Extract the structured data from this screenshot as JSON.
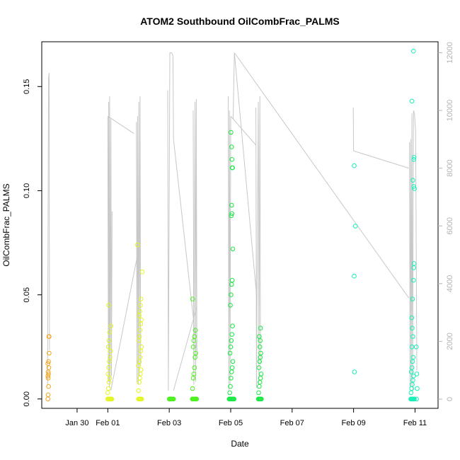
{
  "chart_data": {
    "type": "scatter",
    "title": "ATOM2 Southbound OilCombFrac_PALMS",
    "xlabel": "Date",
    "ylabel": "OilCombFrac_PALMS",
    "x_range_days": [
      -2.15,
      10.75
    ],
    "ylim": [
      -0.0045,
      0.1715
    ],
    "y2lim": [
      -320,
      12380
    ],
    "x_ticks": [
      {
        "label": "Jan 30",
        "day": -1
      },
      {
        "label": "Feb 01",
        "day": 0
      },
      {
        "label": "Feb 03",
        "day": 2
      },
      {
        "label": "Feb 05",
        "day": 4
      },
      {
        "label": "Feb 07",
        "day": 6
      },
      {
        "label": "Feb 09",
        "day": 8
      },
      {
        "label": "Feb 11",
        "day": 10
      }
    ],
    "y_ticks": [
      {
        "label": "0.00",
        "value": 0.0
      },
      {
        "label": "0.05",
        "value": 0.05
      },
      {
        "label": "0.10",
        "value": 0.1
      },
      {
        "label": "0.15",
        "value": 0.15
      }
    ],
    "y2_ticks": [
      {
        "label": "0",
        "value": 0
      },
      {
        "label": "2000",
        "value": 2000
      },
      {
        "label": "4000",
        "value": 4000
      },
      {
        "label": "6000",
        "value": 6000
      },
      {
        "label": "8000",
        "value": 8000
      },
      {
        "label": "10000",
        "value": 10000
      },
      {
        "label": "12000",
        "value": 12000
      }
    ],
    "colors": {
      "orange": "#f5a31a",
      "yellow": "#e3f522",
      "green": "#4cf01e",
      "brightgreen": "#19e843",
      "cyan": "#17f0b8",
      "grayline": "#c8c8c8"
    },
    "series": [
      {
        "color": "orange",
        "points": [
          [
            -1.95,
            0.0
          ],
          [
            -1.94,
            0.002
          ],
          [
            -1.93,
            0.006
          ],
          [
            -1.94,
            0.01
          ],
          [
            -1.95,
            0.011
          ],
          [
            -1.93,
            0.012
          ],
          [
            -1.94,
            0.013
          ],
          [
            -1.92,
            0.015
          ],
          [
            -1.95,
            0.017
          ],
          [
            -1.93,
            0.018
          ],
          [
            -1.91,
            0.022
          ],
          [
            -1.92,
            0.03
          ],
          [
            -1.91,
            0.03
          ]
        ]
      },
      {
        "color": "yellow",
        "points": [
          [
            0.0,
            0.0
          ],
          [
            0.01,
            0.0
          ],
          [
            0.02,
            0.0
          ],
          [
            0.03,
            0.0
          ],
          [
            0.05,
            0.0
          ],
          [
            0.07,
            0.0
          ],
          [
            0.09,
            0.0
          ],
          [
            0.11,
            0.0
          ],
          [
            0.13,
            0.0
          ],
          [
            0.0,
            0.003
          ],
          [
            0.02,
            0.005
          ],
          [
            0.04,
            0.008
          ],
          [
            0.06,
            0.01
          ],
          [
            0.01,
            0.012
          ],
          [
            0.03,
            0.015
          ],
          [
            0.05,
            0.018
          ],
          [
            0.07,
            0.02
          ],
          [
            0.09,
            0.023
          ],
          [
            0.02,
            0.025
          ],
          [
            0.04,
            0.028
          ],
          [
            0.06,
            0.032
          ],
          [
            0.1,
            0.035
          ],
          [
            0.03,
            0.045
          ],
          [
            0.08,
            0.0
          ],
          [
            1.0,
            0.0
          ],
          [
            1.02,
            0.0
          ],
          [
            1.04,
            0.0
          ],
          [
            1.06,
            0.0
          ],
          [
            1.08,
            0.0
          ],
          [
            1.1,
            0.0
          ],
          [
            1.0,
            0.004
          ],
          [
            1.02,
            0.008
          ],
          [
            1.04,
            0.01
          ],
          [
            1.06,
            0.012
          ],
          [
            1.08,
            0.014
          ],
          [
            1.0,
            0.016
          ],
          [
            1.03,
            0.018
          ],
          [
            1.05,
            0.02
          ],
          [
            1.07,
            0.023
          ],
          [
            1.09,
            0.025
          ],
          [
            1.01,
            0.028
          ],
          [
            1.03,
            0.03
          ],
          [
            1.05,
            0.033
          ],
          [
            1.07,
            0.036
          ],
          [
            1.09,
            0.038
          ],
          [
            1.02,
            0.04
          ],
          [
            1.04,
            0.042
          ],
          [
            1.06,
            0.045
          ],
          [
            1.08,
            0.048
          ],
          [
            1.12,
            0.061
          ],
          [
            0.97,
            0.074
          ]
        ]
      },
      {
        "color": "green",
        "points": [
          [
            2.0,
            0.0
          ],
          [
            2.02,
            0.0
          ],
          [
            2.04,
            0.0
          ],
          [
            2.06,
            0.0
          ],
          [
            2.08,
            0.0
          ],
          [
            2.1,
            0.0
          ],
          [
            2.12,
            0.0
          ],
          [
            2.14,
            0.0
          ],
          [
            2.75,
            0.0
          ],
          [
            2.77,
            0.0
          ],
          [
            2.79,
            0.0
          ],
          [
            2.81,
            0.0
          ],
          [
            2.83,
            0.0
          ],
          [
            2.85,
            0.0
          ],
          [
            2.87,
            0.0
          ],
          [
            2.89,
            0.0
          ],
          [
            2.76,
            0.005
          ],
          [
            2.78,
            0.01
          ],
          [
            2.8,
            0.012
          ],
          [
            2.82,
            0.015
          ],
          [
            2.84,
            0.02
          ],
          [
            2.86,
            0.022
          ],
          [
            2.78,
            0.025
          ],
          [
            2.8,
            0.028
          ],
          [
            2.82,
            0.03
          ],
          [
            2.85,
            0.033
          ],
          [
            2.76,
            0.048
          ]
        ]
      },
      {
        "color": "brightgreen",
        "points": [
          [
            3.95,
            0.0
          ],
          [
            3.97,
            0.0
          ],
          [
            3.99,
            0.0
          ],
          [
            4.01,
            0.0
          ],
          [
            4.03,
            0.0
          ],
          [
            4.05,
            0.0
          ],
          [
            4.07,
            0.0
          ],
          [
            4.09,
            0.0
          ],
          [
            4.11,
            0.0
          ],
          [
            3.97,
            0.003
          ],
          [
            3.99,
            0.006
          ],
          [
            4.01,
            0.01
          ],
          [
            4.03,
            0.013
          ],
          [
            4.05,
            0.015
          ],
          [
            4.07,
            0.018
          ],
          [
            3.98,
            0.022
          ],
          [
            4.0,
            0.025
          ],
          [
            4.02,
            0.028
          ],
          [
            4.04,
            0.031
          ],
          [
            4.06,
            0.035
          ],
          [
            3.99,
            0.045
          ],
          [
            4.01,
            0.05
          ],
          [
            4.03,
            0.055
          ],
          [
            4.05,
            0.057
          ],
          [
            4.07,
            0.072
          ],
          [
            4.02,
            0.088
          ],
          [
            4.04,
            0.089
          ],
          [
            4.03,
            0.093
          ],
          [
            4.05,
            0.111
          ],
          [
            4.06,
            0.111
          ],
          [
            4.04,
            0.115
          ],
          [
            4.03,
            0.121
          ],
          [
            4.01,
            0.128
          ],
          [
            4.9,
            0.0
          ],
          [
            4.92,
            0.0
          ],
          [
            4.94,
            0.0
          ],
          [
            4.96,
            0.0
          ],
          [
            4.98,
            0.0
          ],
          [
            5.0,
            0.0
          ],
          [
            4.91,
            0.003
          ],
          [
            4.93,
            0.006
          ],
          [
            4.95,
            0.008
          ],
          [
            4.97,
            0.01
          ],
          [
            4.99,
            0.012
          ],
          [
            4.92,
            0.015
          ],
          [
            4.94,
            0.018
          ],
          [
            4.96,
            0.02
          ],
          [
            4.98,
            0.022
          ],
          [
            4.95,
            0.025
          ],
          [
            4.93,
            0.03
          ],
          [
            4.97,
            0.034
          ],
          [
            4.96,
            0.028
          ]
        ]
      },
      {
        "color": "cyan",
        "points": [
          [
            8.03,
            0.013
          ],
          [
            8.02,
            0.059
          ],
          [
            8.06,
            0.083
          ],
          [
            8.02,
            0.112
          ],
          [
            9.86,
            0.0
          ],
          [
            9.88,
            0.0
          ],
          [
            9.9,
            0.0
          ],
          [
            9.92,
            0.0
          ],
          [
            9.94,
            0.0
          ],
          [
            9.96,
            0.0
          ],
          [
            9.98,
            0.0
          ],
          [
            9.87,
            0.003
          ],
          [
            9.89,
            0.005
          ],
          [
            9.91,
            0.007
          ],
          [
            9.93,
            0.009
          ],
          [
            9.95,
            0.011
          ],
          [
            9.88,
            0.013
          ],
          [
            9.9,
            0.015
          ],
          [
            9.92,
            0.018
          ],
          [
            9.94,
            0.02
          ],
          [
            9.9,
            0.025
          ],
          [
            9.93,
            0.03
          ],
          [
            9.91,
            0.034
          ],
          [
            9.89,
            0.039
          ],
          [
            9.92,
            0.048
          ],
          [
            9.95,
            0.057
          ],
          [
            9.96,
            0.063
          ],
          [
            9.97,
            0.065
          ],
          [
            9.98,
            0.101
          ],
          [
            9.96,
            0.102
          ],
          [
            9.93,
            0.105
          ],
          [
            9.96,
            0.115
          ],
          [
            9.97,
            0.116
          ],
          [
            9.9,
            0.143
          ],
          [
            9.95,
            0.167
          ],
          [
            10.05,
            0.0
          ],
          [
            10.07,
            0.005
          ],
          [
            10.06,
            0.012
          ],
          [
            10.04,
            0.025
          ]
        ]
      }
    ],
    "altitude_line": {
      "axis": "right",
      "segments": [
        [
          [
            -1.96,
            500
          ],
          [
            -1.93,
            11100
          ],
          [
            -1.91,
            11300
          ],
          [
            -1.9,
            1700
          ]
        ],
        [
          [
            0.0,
            9800
          ],
          [
            0.02,
            600
          ],
          [
            0.03,
            10300
          ],
          [
            0.05,
            400
          ],
          [
            0.06,
            10500
          ],
          [
            0.08,
            600
          ],
          [
            0.1,
            9700
          ],
          [
            0.12,
            800
          ],
          [
            0.14,
            6500
          ]
        ],
        [
          [
            0.0,
            9800
          ],
          [
            0.85,
            9200
          ]
        ],
        [
          [
            0.93,
            9600
          ],
          [
            0.95,
            600
          ],
          [
            0.97,
            9800
          ],
          [
            0.99,
            500
          ],
          [
            1.01,
            10300
          ],
          [
            1.03,
            800
          ],
          [
            1.05,
            10500
          ],
          [
            1.07,
            1200
          ]
        ],
        [
          [
            0.1,
            300
          ],
          [
            0.95,
            4900
          ]
        ],
        [
          [
            1.95,
            10700
          ],
          [
            1.97,
            300
          ],
          [
            2.02,
            12000
          ],
          [
            2.07,
            12000
          ],
          [
            2.12,
            11900
          ],
          [
            2.14,
            9000
          ]
        ],
        [
          [
            2.14,
            9000
          ],
          [
            2.9,
            1700
          ]
        ],
        [
          [
            2.14,
            300
          ],
          [
            2.9,
            3200
          ]
        ],
        [
          [
            2.78,
            10000
          ],
          [
            2.8,
            500
          ],
          [
            2.84,
            10300
          ],
          [
            2.86,
            600
          ],
          [
            2.88,
            10400
          ],
          [
            2.9,
            1500
          ]
        ],
        [
          [
            3.92,
            10500
          ],
          [
            3.94,
            300
          ],
          [
            3.96,
            10000
          ],
          [
            3.98,
            500
          ],
          [
            4.0,
            9800
          ]
        ],
        [
          [
            4.0,
            9800
          ],
          [
            4.82,
            8800
          ]
        ],
        [
          [
            4.08,
            9700
          ],
          [
            4.12,
            12000
          ],
          [
            4.85,
            3500
          ]
        ],
        [
          [
            4.82,
            10100
          ],
          [
            4.84,
            400
          ],
          [
            4.9,
            10300
          ],
          [
            4.92,
            500
          ],
          [
            4.95,
            10500
          ],
          [
            4.97,
            1200
          ]
        ],
        [
          [
            4.12,
            12000
          ],
          [
            9.8,
            3500
          ]
        ],
        [
          [
            7.99,
            10100
          ],
          [
            8.0,
            8600
          ],
          [
            9.8,
            8000
          ]
        ],
        [
          [
            9.82,
            8900
          ],
          [
            9.84,
            400
          ],
          [
            9.86,
            9000
          ],
          [
            9.88,
            500
          ],
          [
            9.9,
            9900
          ],
          [
            9.92,
            300
          ],
          [
            9.95,
            10000
          ],
          [
            9.98,
            9900
          ],
          [
            10.02,
            9300
          ],
          [
            10.06,
            1000
          ]
        ]
      ]
    }
  }
}
